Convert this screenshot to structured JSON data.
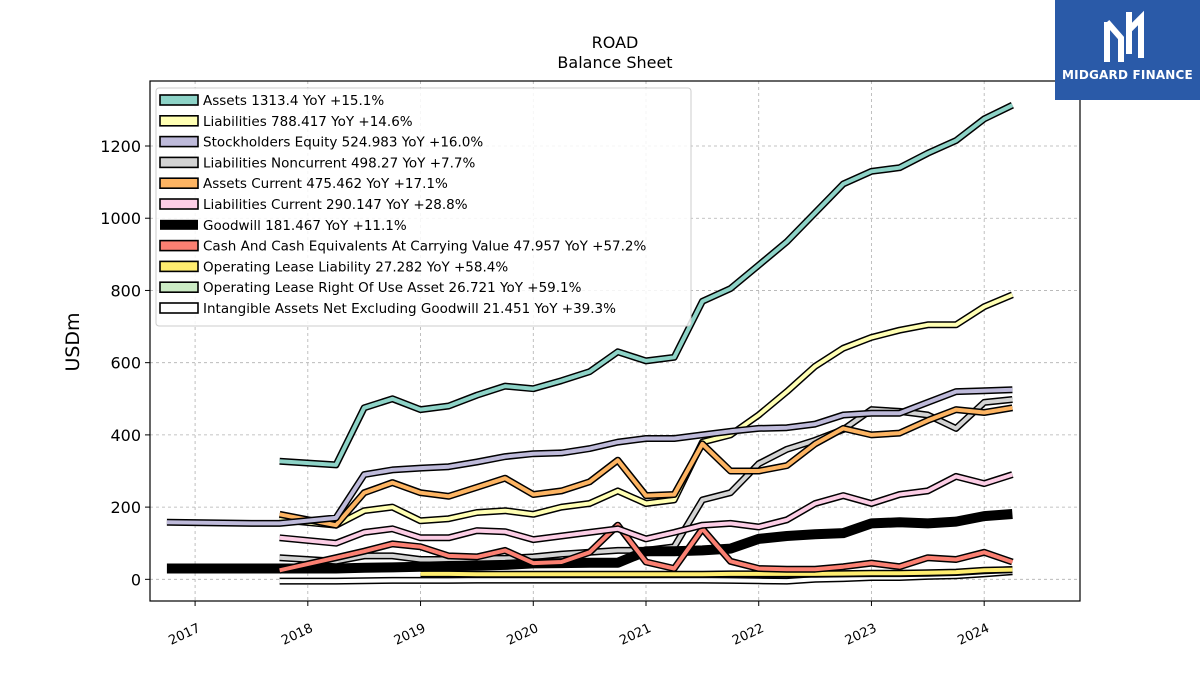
{
  "brand": {
    "name": "MIDGARD FINANCE",
    "color": "#2a5aa8"
  },
  "chart_data": {
    "type": "line",
    "title": "ROAD",
    "subtitle": "Balance  Sheet",
    "ylabel": "USDm",
    "xlabel": "",
    "ylim": [
      -60,
      1380
    ],
    "xlim": [
      2016.6,
      2024.85
    ],
    "yticks": [
      0,
      200,
      400,
      600,
      800,
      1000,
      1200
    ],
    "xticks": [
      2017,
      2018,
      2019,
      2020,
      2021,
      2022,
      2023,
      2024
    ],
    "grid": true,
    "legend_position": "top-left",
    "series": [
      {
        "name": "Assets  1313.4 YoY +15.1%",
        "color": "#8dd3c7",
        "width": 4,
        "x": [
          2017.75,
          2018.25,
          2018.5,
          2018.75,
          2019.0,
          2019.25,
          2019.5,
          2019.75,
          2020.0,
          2020.25,
          2020.5,
          2020.75,
          2021.0,
          2021.25,
          2021.5,
          2021.75,
          2022.0,
          2022.25,
          2022.5,
          2022.75,
          2023.0,
          2023.25,
          2023.5,
          2023.75,
          2024.0,
          2024.25
        ],
        "y": [
          327,
          317,
          475,
          500,
          470,
          480,
          510,
          535,
          528,
          550,
          575,
          630,
          605,
          615,
          770,
          805,
          870,
          935,
          1015,
          1095,
          1130,
          1140,
          1180,
          1215,
          1275,
          1313
        ]
      },
      {
        "name": "Liabilities  788.417 YoY +14.6%",
        "color": "#ffffb3",
        "width": 4,
        "x": [
          2017.75,
          2018.25,
          2018.5,
          2018.75,
          2019.0,
          2019.25,
          2019.5,
          2019.75,
          2020.0,
          2020.25,
          2020.5,
          2020.75,
          2021.0,
          2021.25,
          2021.5,
          2021.75,
          2022.0,
          2022.25,
          2022.5,
          2022.75,
          2023.0,
          2023.25,
          2023.5,
          2023.75,
          2024.0,
          2024.25
        ],
        "y": [
          165,
          150,
          190,
          200,
          162,
          168,
          185,
          190,
          180,
          200,
          210,
          245,
          210,
          220,
          380,
          400,
          455,
          520,
          590,
          640,
          670,
          690,
          705,
          705,
          755,
          788
        ]
      },
      {
        "name": "Stockholders Equity  524.983 YoY +16.0%",
        "color": "#bebada",
        "width": 4,
        "x": [
          2016.75,
          2017.0,
          2017.25,
          2017.5,
          2017.75,
          2018.25,
          2018.5,
          2018.75,
          2019.0,
          2019.25,
          2019.5,
          2019.75,
          2020.0,
          2020.25,
          2020.5,
          2020.75,
          2021.0,
          2021.25,
          2021.5,
          2021.75,
          2022.0,
          2022.25,
          2022.5,
          2022.75,
          2023.0,
          2023.25,
          2023.5,
          2023.75,
          2024.0,
          2024.25
        ],
        "y": [
          158,
          157,
          156,
          155,
          155,
          170,
          290,
          303,
          308,
          312,
          325,
          340,
          348,
          350,
          362,
          380,
          390,
          390,
          400,
          410,
          418,
          420,
          430,
          455,
          460,
          460,
          490,
          520,
          522,
          525
        ]
      },
      {
        "name": "Liabilities Noncurrent  498.27 YoY +7.7%",
        "color": "#d3d3d3",
        "width": 4,
        "x": [
          2017.75,
          2018.25,
          2018.5,
          2018.75,
          2019.0,
          2019.25,
          2019.5,
          2019.75,
          2020.0,
          2020.25,
          2020.5,
          2020.75,
          2021.0,
          2021.25,
          2021.5,
          2021.75,
          2022.0,
          2022.25,
          2022.5,
          2022.75,
          2023.0,
          2023.25,
          2023.5,
          2023.75,
          2024.0,
          2024.25
        ],
        "y": [
          60,
          50,
          65,
          65,
          55,
          55,
          58,
          58,
          62,
          70,
          75,
          80,
          80,
          90,
          220,
          240,
          320,
          360,
          385,
          415,
          470,
          465,
          455,
          418,
          490,
          498
        ]
      },
      {
        "name": "Assets Current  475.462 YoY +17.1%",
        "color": "#fdb462",
        "width": 4,
        "x": [
          2017.75,
          2018.25,
          2018.5,
          2018.75,
          2019.0,
          2019.25,
          2019.5,
          2019.75,
          2020.0,
          2020.25,
          2020.5,
          2020.75,
          2021.0,
          2021.25,
          2021.5,
          2021.75,
          2022.0,
          2022.25,
          2022.5,
          2022.75,
          2023.0,
          2023.25,
          2023.5,
          2023.75,
          2024.0,
          2024.25
        ],
        "y": [
          180,
          150,
          240,
          268,
          240,
          230,
          255,
          280,
          235,
          245,
          270,
          330,
          232,
          235,
          375,
          300,
          300,
          315,
          375,
          418,
          400,
          405,
          440,
          470,
          462,
          475
        ]
      },
      {
        "name": "Liabilities Current  290.147 YoY +28.8%",
        "color": "#fccde5",
        "width": 4,
        "x": [
          2017.75,
          2018.25,
          2018.5,
          2018.75,
          2019.0,
          2019.25,
          2019.5,
          2019.75,
          2020.0,
          2020.25,
          2020.5,
          2020.75,
          2021.0,
          2021.25,
          2021.5,
          2021.75,
          2022.0,
          2022.25,
          2022.5,
          2022.75,
          2023.0,
          2023.25,
          2023.5,
          2023.75,
          2024.0,
          2024.25
        ],
        "y": [
          115,
          100,
          130,
          140,
          115,
          115,
          135,
          132,
          110,
          120,
          130,
          140,
          112,
          130,
          150,
          155,
          145,
          165,
          210,
          232,
          210,
          235,
          245,
          285,
          265,
          290
        ]
      },
      {
        "name": "Goodwill  181.467 YoY +11.1%",
        "color": "#000000",
        "width": 10,
        "x": [
          2016.75,
          2017.0,
          2017.25,
          2017.5,
          2017.75,
          2018.0,
          2018.25,
          2018.5,
          2018.75,
          2019.0,
          2019.25,
          2019.5,
          2019.75,
          2020.0,
          2020.25,
          2020.5,
          2020.75,
          2021.0,
          2021.25,
          2021.5,
          2021.75,
          2022.0,
          2022.25,
          2022.5,
          2022.75,
          2023.0,
          2023.25,
          2023.5,
          2023.75,
          2024.0,
          2024.25
        ],
        "y": [
          30,
          30,
          30,
          30,
          30,
          30,
          30,
          32,
          33,
          35,
          37,
          38,
          40,
          44,
          45,
          46,
          46,
          78,
          78,
          80,
          85,
          112,
          120,
          125,
          128,
          155,
          158,
          155,
          160,
          175,
          181
        ]
      },
      {
        "name": "Cash And Cash Equivalents At Carrying Value  47.957 YoY +57.2%",
        "color": "#fb8072",
        "width": 4,
        "x": [
          2017.75,
          2018.25,
          2018.5,
          2018.75,
          2019.0,
          2019.25,
          2019.5,
          2019.75,
          2020.0,
          2020.25,
          2020.5,
          2020.75,
          2021.0,
          2021.25,
          2021.5,
          2021.75,
          2022.0,
          2022.25,
          2022.5,
          2022.75,
          2023.0,
          2023.25,
          2023.5,
          2023.75,
          2024.0,
          2024.25
        ],
        "y": [
          25,
          60,
          78,
          98,
          90,
          65,
          62,
          80,
          45,
          48,
          75,
          150,
          48,
          30,
          140,
          50,
          30,
          28,
          28,
          35,
          45,
          35,
          60,
          55,
          75,
          48
        ]
      },
      {
        "name": "Operating Lease Liability  27.282 YoY +58.4%",
        "color": "#ffed6f",
        "width": 4,
        "x": [
          2019.0,
          2019.25,
          2019.5,
          2019.75,
          2020.0,
          2020.25,
          2020.5,
          2020.75,
          2021.0,
          2021.25,
          2021.5,
          2021.75,
          2022.0,
          2022.25,
          2022.5,
          2022.75,
          2023.0,
          2023.25,
          2023.5,
          2023.75,
          2024.0,
          2024.25
        ],
        "y": [
          15,
          15,
          14,
          14,
          14,
          14,
          14,
          14,
          14,
          14,
          14,
          15,
          15,
          15,
          15,
          16,
          17,
          17,
          18,
          20,
          25,
          27
        ]
      },
      {
        "name": "Operating Lease Right Of Use Asset  26.721 YoY +59.1%",
        "color": "#ccebc5",
        "width": 4,
        "x": [
          2019.0,
          2019.25,
          2019.5,
          2019.75,
          2020.0,
          2020.25,
          2020.5,
          2020.75,
          2021.0,
          2021.25,
          2021.5,
          2021.75,
          2022.0,
          2022.25,
          2022.5,
          2022.75,
          2023.0,
          2023.25,
          2023.5,
          2023.75,
          2024.0,
          2024.25
        ],
        "y": [
          14,
          14,
          13,
          13,
          13,
          13,
          13,
          13,
          13,
          13,
          13,
          14,
          14,
          14,
          14,
          15,
          16,
          16,
          17,
          19,
          24,
          27
        ]
      },
      {
        "name": "Intangible Assets Net Excluding Goodwill  21.451 YoY +39.3%",
        "color": "#ffffff",
        "width": 4,
        "x": [
          2017.75,
          2018.25,
          2018.5,
          2018.75,
          2019.0,
          2019.25,
          2019.5,
          2019.75,
          2020.0,
          2020.25,
          2020.5,
          2020.75,
          2021.0,
          2021.25,
          2021.5,
          2021.75,
          2022.0,
          2022.25,
          2022.5,
          2022.75,
          2023.0,
          2023.25,
          2023.5,
          2023.75,
          2024.0,
          2024.25
        ],
        "y": [
          -5,
          -5,
          -4,
          -3,
          -3,
          -3,
          -2,
          -2,
          -2,
          -2,
          -2,
          -2,
          -2,
          -2,
          -2,
          -3,
          -4,
          -5,
          0,
          2,
          5,
          5,
          8,
          10,
          15,
          21
        ]
      }
    ]
  }
}
